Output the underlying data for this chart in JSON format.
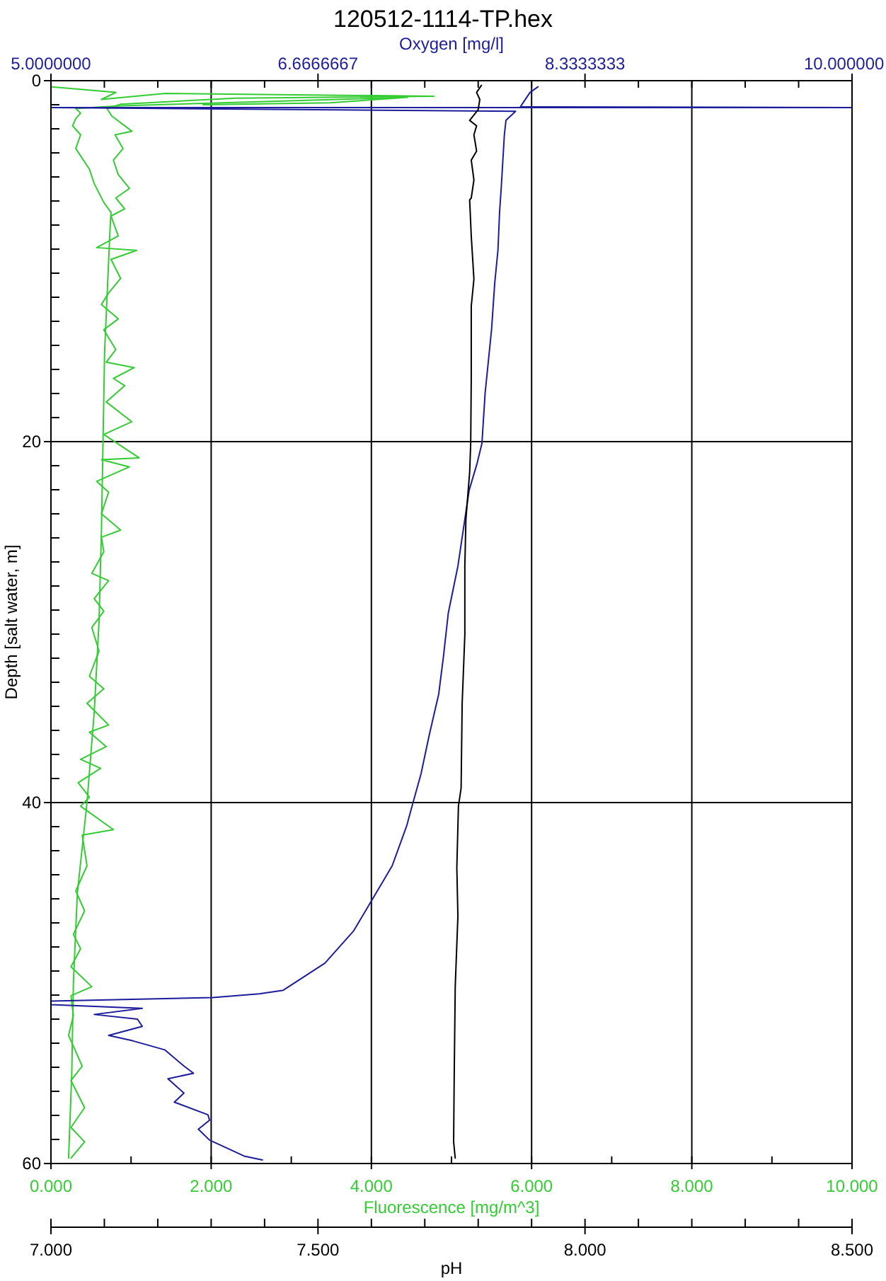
{
  "chart_data": [
    {
      "type": "line",
      "title": "120512-1114-TP.hex",
      "xlabel": "Fluorescence [mg/m^3]",
      "x2label": "Oxygen [mg/l]",
      "ylabel": "Depth [salt water, m]",
      "xlim": [
        0,
        10
      ],
      "xticks": [
        {
          "value": 0,
          "label": "0.000"
        },
        {
          "value": 1,
          "label": null
        },
        {
          "value": 2,
          "label": "2.000"
        },
        {
          "value": 3,
          "label": null
        },
        {
          "value": 4,
          "label": "4.000"
        },
        {
          "value": 5,
          "label": null
        },
        {
          "value": 6,
          "label": "6.000"
        },
        {
          "value": 7,
          "label": null
        },
        {
          "value": 8,
          "label": "8.000"
        },
        {
          "value": 9,
          "label": null
        },
        {
          "value": 10,
          "label": "10.000"
        }
      ],
      "x2lim": [
        5,
        10
      ],
      "x2ticks": [
        {
          "value": 5,
          "label": "5.0000000"
        },
        {
          "value": 5.3333,
          "label": null
        },
        {
          "value": 5.6667,
          "label": null
        },
        {
          "value": 6,
          "label": null
        },
        {
          "value": 6.3333,
          "label": null
        },
        {
          "value": 6.6666667,
          "label": "6.6666667"
        },
        {
          "value": 7,
          "label": null
        },
        {
          "value": 7.3333,
          "label": null
        },
        {
          "value": 7.6667,
          "label": null
        },
        {
          "value": 8,
          "label": null
        },
        {
          "value": 8.3333333,
          "label": "8.3333333"
        },
        {
          "value": 8.6667,
          "label": null
        },
        {
          "value": 9,
          "label": null
        },
        {
          "value": 9.3333,
          "label": null
        },
        {
          "value": 9.6667,
          "label": null
        },
        {
          "value": 10,
          "label": "10.000000"
        }
      ],
      "ylim": [
        60,
        0
      ],
      "yticks": [
        0,
        {
          "value": 1.3333,
          "label": null
        },
        {
          "value": 2.6667,
          "label": null
        },
        {
          "value": 4,
          "label": null
        },
        {
          "value": 5.3333,
          "label": null
        },
        {
          "value": 6.6667,
          "label": null
        },
        {
          "value": 8,
          "label": null
        },
        {
          "value": 9.3333,
          "label": null
        },
        {
          "value": 10.6667,
          "label": null
        },
        {
          "value": 12,
          "label": null
        },
        {
          "value": 13.3333,
          "label": null
        },
        {
          "value": 14.6667,
          "label": null
        },
        {
          "value": 16,
          "label": null
        },
        {
          "value": 17.3333,
          "label": null
        },
        {
          "value": 18.6667,
          "label": null
        },
        20,
        {
          "value": 21.3333,
          "label": null
        },
        {
          "value": 22.6667,
          "label": null
        },
        {
          "value": 24,
          "label": null
        },
        {
          "value": 25.3333,
          "label": null
        },
        {
          "value": 26.6667,
          "label": null
        },
        {
          "value": 28,
          "label": null
        },
        {
          "value": 29.3333,
          "label": null
        },
        {
          "value": 30.6667,
          "label": null
        },
        {
          "value": 32,
          "label": null
        },
        {
          "value": 33.3333,
          "label": null
        },
        {
          "value": 34.6667,
          "label": null
        },
        {
          "value": 36,
          "label": null
        },
        {
          "value": 37.3333,
          "label": null
        },
        {
          "value": 38.6667,
          "label": null
        },
        40,
        {
          "value": 41.3333,
          "label": null
        },
        {
          "value": 42.6667,
          "label": null
        },
        {
          "value": 44,
          "label": null
        },
        {
          "value": 45.3333,
          "label": null
        },
        {
          "value": 46.6667,
          "label": null
        },
        {
          "value": 48,
          "label": null
        },
        {
          "value": 49.3333,
          "label": null
        },
        {
          "value": 50.6667,
          "label": null
        },
        {
          "value": 52,
          "label": null
        },
        {
          "value": 53.3333,
          "label": null
        },
        {
          "value": 54.6667,
          "label": null
        },
        {
          "value": 56,
          "label": null
        },
        {
          "value": 57.3333,
          "label": null
        },
        {
          "value": 58.6667,
          "label": null
        },
        60
      ],
      "grid": true,
      "series": [
        {
          "color": "#33cc33",
          "x": [
            0.01,
            0.81,
            0.63,
            1.43,
            4.78,
            2.3,
            0.87,
            0.7,
            0.76,
            1.01,
            0.8,
            0.9,
            0.78,
            0.84,
            0.98,
            0.81,
            0.92,
            0.75,
            0.84,
            0.57,
            1.07,
            0.75,
            0.87,
            0.72,
            0.63,
            0.84,
            0.66,
            0.81,
            0.69,
            1.04,
            0.78,
            0.92,
            0.69,
            1.01,
            0.66,
            1.1,
            0.63,
            0.98,
            0.57,
            0.72,
            0.63,
            0.87,
            0.63,
            0.66,
            0.51,
            0.72,
            0.54,
            0.66,
            0.51,
            0.6,
            0.48,
            0.66,
            0.45,
            0.72,
            0.48,
            0.69,
            0.37,
            0.62,
            0.34,
            0.48,
            0.37,
            0.78,
            0.39,
            0.45,
            0.31,
            0.42,
            0.28,
            0.37,
            0.25,
            0.51,
            0.25,
            0.28,
            0.22,
            0.39,
            0.25,
            0.42,
            0.25,
            0.42,
            0.25
          ],
          "values": [
            0.34,
            0.65,
            1.04,
            0.71,
            0.86,
            0.97,
            1.3,
            1.55,
            1.96,
            2.8,
            3.0,
            3.76,
            4.4,
            5.2,
            5.97,
            6.5,
            7.1,
            7.5,
            8.6,
            9.25,
            9.4,
            9.9,
            10.96,
            11.76,
            12.4,
            13.2,
            13.8,
            14.9,
            15.6,
            15.9,
            16.5,
            16.9,
            17.8,
            18.9,
            19.6,
            20.9,
            21.0,
            21.4,
            22.2,
            22.8,
            24.0,
            24.9,
            25.3,
            26.1,
            27.3,
            27.7,
            28.7,
            29.4,
            30.3,
            31.6,
            33.0,
            33.7,
            34.5,
            35.7,
            36.1,
            36.9,
            37.6,
            38.1,
            38.9,
            39.7,
            40.2,
            41.5,
            41.8,
            43.5,
            44.9,
            46.0,
            47.3,
            48.1,
            49.1,
            50.2,
            50.7,
            51.8,
            52.9,
            54.6,
            55.4,
            56.9,
            58.0,
            58.8,
            59.7
          ]
        },
        {
          "color": "#33cc33",
          "x": [
            0.22,
            0.26,
            0.28,
            0.33,
            0.45,
            0.54,
            0.6,
            0.63,
            0.65,
            0.67,
            0.72,
            0.74,
            0.75,
            0.66,
            0.54,
            0.48,
            0.31,
            0.37,
            0.27,
            0.31,
            0.37,
            0.31,
            0.87,
            4.45,
            3.48,
            1.9
          ],
          "values": [
            59.7,
            55,
            50,
            45,
            40,
            35,
            30,
            25,
            20,
            15,
            10,
            8,
            7.3,
            6.75,
            5.7,
            4.9,
            3.76,
            3.0,
            2.5,
            2.1,
            1.8,
            1.54,
            1.39,
            0.92,
            1.23,
            1.33
          ]
        },
        {
          "color": "#1c1c9c",
          "axis": "x2",
          "x": [
            8.04,
            7.99,
            7.95,
            7.93,
            10,
            5,
            7.9,
            7.84,
            7.83,
            7.81,
            7.8,
            7.79,
            7.77,
            7.75,
            7.71,
            7.69,
            7.66,
            7.61,
            7.58,
            7.54,
            7.48,
            7.45,
            7.42,
            7.36,
            7.31,
            7.26,
            7.22,
            7.13,
            7.01,
            6.89,
            6.71,
            6.45,
            6.3,
            6.01,
            5,
            5,
            5.57,
            5.27,
            5.54,
            5.57,
            5.36,
            5.51,
            5.71,
            5.83,
            5.89,
            5.73,
            5.83,
            5.77,
            5.98,
            5.99,
            5.92,
            5.99,
            6.21,
            6.32
          ],
          "values": [
            0.34,
            0.65,
            1.18,
            1.45,
            1.49,
            1.49,
            1.7,
            2.2,
            3.0,
            6.0,
            7.3,
            9.4,
            11.2,
            13.8,
            17.3,
            20.1,
            21.2,
            22.7,
            24.5,
            26.9,
            29.5,
            31.9,
            34.0,
            36.3,
            38.4,
            40.0,
            41.3,
            43.5,
            45.3,
            47.1,
            48.9,
            50.4,
            50.6,
            50.8,
            51.0,
            51.2,
            51.4,
            51.74,
            52.0,
            52.4,
            52.9,
            53.2,
            53.7,
            54.6,
            55.0,
            55.3,
            56.1,
            56.6,
            57.3,
            57.6,
            58.1,
            58.7,
            59.6,
            59.8
          ]
        }
      ]
    },
    {
      "type": "line",
      "xlabel": "pH",
      "xlim": [
        7,
        8.5
      ],
      "xticks": [
        {
          "value": 7,
          "label": "7.000"
        },
        {
          "value": 7.1,
          "label": null
        },
        {
          "value": 7.2,
          "label": null
        },
        {
          "value": 7.3,
          "label": null
        },
        {
          "value": 7.4,
          "label": null
        },
        {
          "value": 7.5,
          "label": "7.500"
        },
        {
          "value": 7.6,
          "label": null
        },
        {
          "value": 7.7,
          "label": null
        },
        {
          "value": 7.8,
          "label": null
        },
        {
          "value": 7.9,
          "label": null
        },
        {
          "value": 8,
          "label": "8.000"
        },
        {
          "value": 8.1,
          "label": null
        },
        {
          "value": 8.2,
          "label": null
        },
        {
          "value": 8.3,
          "label": null
        },
        {
          "value": 8.4,
          "label": null
        },
        {
          "value": 8.5,
          "label": "8.500"
        }
      ],
      "ylim": [
        60,
        0
      ],
      "tick_labels": "x",
      "series": [
        {
          "color": "#000000",
          "x": [
            7.806,
            7.797,
            7.803,
            7.8,
            7.784,
            7.797,
            7.792,
            7.797,
            7.787,
            7.792,
            7.787,
            7.784,
            7.787,
            7.792,
            7.787,
            7.787,
            7.786,
            7.784,
            7.777,
            7.775,
            7.775,
            7.77,
            7.768,
            7.763,
            7.76,
            7.762,
            7.757,
            7.755,
            7.754,
            7.757
          ],
          "values": [
            0.26,
            0.65,
            1.04,
            1.6,
            2.2,
            2.5,
            3.0,
            3.9,
            4.4,
            5.5,
            6.5,
            6.6,
            8.6,
            11.0,
            12.5,
            16.5,
            20.1,
            21.7,
            24.3,
            26.9,
            30.7,
            34.5,
            39.2,
            40.2,
            43.6,
            46.3,
            50.2,
            55.4,
            58.8,
            59.7
          ]
        }
      ]
    }
  ]
}
